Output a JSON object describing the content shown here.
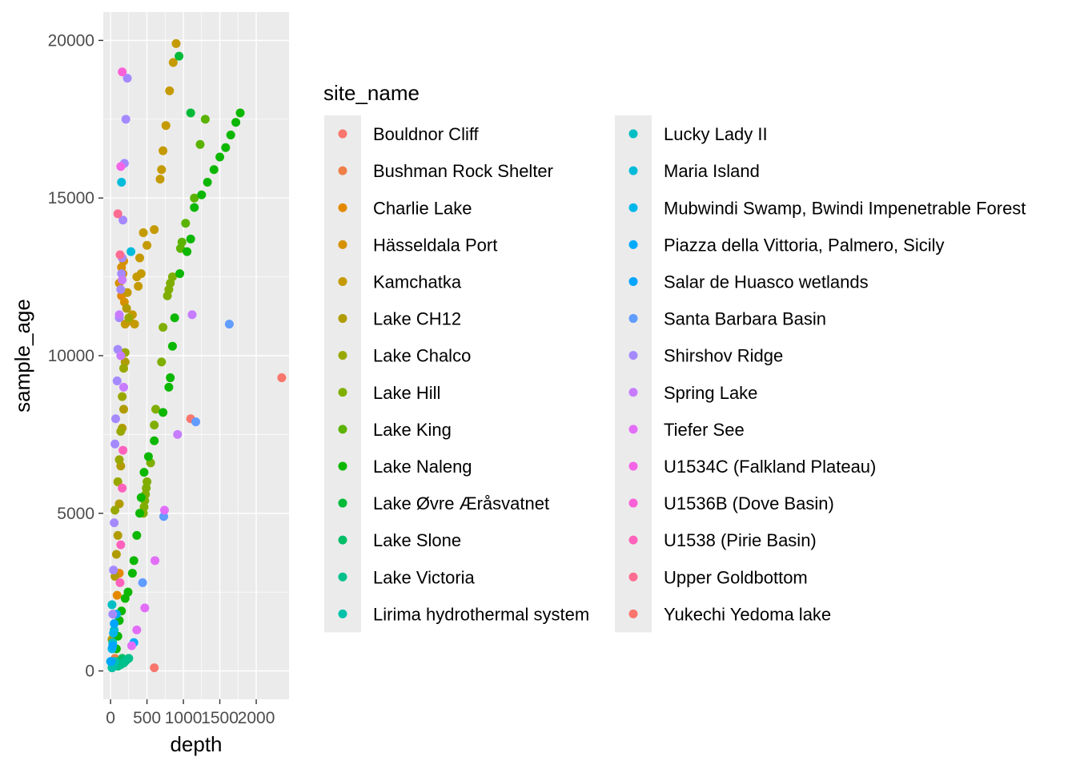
{
  "chart_data": {
    "type": "scatter",
    "xlabel": "depth",
    "ylabel": "sample_age",
    "xlim": [
      -100,
      2450
    ],
    "ylim": [
      -900,
      20900
    ],
    "x_ticks": [
      0,
      500,
      1000,
      1500,
      2000
    ],
    "x_tick_labels": [
      "0",
      "500",
      "1000",
      "1500",
      "2000"
    ],
    "y_ticks": [
      0,
      5000,
      10000,
      15000,
      20000
    ],
    "y_tick_labels": [
      "0",
      "5000",
      "10000",
      "15000",
      "20000"
    ],
    "grid": true,
    "legend_title": "site_name",
    "legend_placement": "right",
    "series": [
      {
        "name": "Bouldnor Cliff",
        "color": "#F8766D",
        "points": [
          [
            1100,
            8000
          ]
        ]
      },
      {
        "name": "Bushman Rock Shelter",
        "color": "#EF7F48",
        "points": [
          [
            30,
            200
          ],
          [
            60,
            400
          ]
        ]
      },
      {
        "name": "Charlie Lake",
        "color": "#E38900",
        "points": [
          [
            60,
            1100
          ],
          [
            90,
            2400
          ],
          [
            120,
            3100
          ],
          [
            150,
            11900
          ]
        ]
      },
      {
        "name": "Hässeldala Port",
        "color": "#D59100",
        "points": [
          [
            120,
            12300
          ],
          [
            150,
            12800
          ],
          [
            170,
            12600
          ],
          [
            180,
            13000
          ],
          [
            190,
            11700
          ]
        ]
      },
      {
        "name": "Kamchatka",
        "color": "#C49A00",
        "points": [
          [
            200,
            11000
          ],
          [
            230,
            12000
          ],
          [
            260,
            11100
          ],
          [
            300,
            11300
          ],
          [
            330,
            11000
          ],
          [
            360,
            12500
          ],
          [
            380,
            12200
          ],
          [
            400,
            13100
          ],
          [
            420,
            12600
          ],
          [
            450,
            13900
          ],
          [
            500,
            13500
          ],
          [
            600,
            14000
          ],
          [
            680,
            15600
          ],
          [
            700,
            15900
          ],
          [
            720,
            16500
          ],
          [
            760,
            17300
          ],
          [
            810,
            18400
          ],
          [
            860,
            19300
          ],
          [
            900,
            19900
          ]
        ]
      },
      {
        "name": "Lake CH12",
        "color": "#B09C00",
        "points": [
          [
            20,
            1000
          ],
          [
            40,
            1800
          ],
          [
            60,
            3000
          ],
          [
            80,
            3700
          ],
          [
            100,
            4300
          ],
          [
            120,
            5300
          ],
          [
            140,
            6500
          ],
          [
            160,
            7700
          ],
          [
            180,
            8300
          ],
          [
            200,
            9800
          ],
          [
            220,
            11500
          ]
        ]
      },
      {
        "name": "Lake Chalco",
        "color": "#99A800",
        "points": [
          [
            60,
            5100
          ],
          [
            100,
            6000
          ],
          [
            120,
            6700
          ],
          [
            140,
            7600
          ],
          [
            160,
            8700
          ],
          [
            180,
            9600
          ],
          [
            200,
            10100
          ],
          [
            250,
            11200
          ]
        ]
      },
      {
        "name": "Lake Hill",
        "color": "#7FAE00",
        "points": [
          [
            450,
            5000
          ],
          [
            460,
            5200
          ],
          [
            470,
            5400
          ],
          [
            480,
            5600
          ],
          [
            490,
            5800
          ],
          [
            500,
            6000
          ],
          [
            550,
            6600
          ],
          [
            600,
            7800
          ],
          [
            620,
            8300
          ],
          [
            700,
            9800
          ],
          [
            720,
            10900
          ],
          [
            780,
            11900
          ],
          [
            800,
            12100
          ],
          [
            820,
            12300
          ],
          [
            850,
            12500
          ]
        ]
      },
      {
        "name": "Lake King",
        "color": "#5BB300",
        "points": [
          [
            1030,
            14200
          ],
          [
            1150,
            15000
          ],
          [
            1230,
            16700
          ],
          [
            1300,
            17500
          ],
          [
            980,
            13600
          ],
          [
            960,
            13400
          ]
        ]
      },
      {
        "name": "Lake Naleng",
        "color": "#0CB702",
        "points": [
          [
            20,
            100
          ],
          [
            80,
            700
          ],
          [
            100,
            1100
          ],
          [
            120,
            1600
          ],
          [
            150,
            1900
          ],
          [
            200,
            2300
          ],
          [
            240,
            2500
          ],
          [
            300,
            3100
          ],
          [
            320,
            3500
          ],
          [
            360,
            4300
          ],
          [
            400,
            5000
          ],
          [
            420,
            5500
          ],
          [
            460,
            6300
          ],
          [
            520,
            6800
          ],
          [
            600,
            7300
          ],
          [
            720,
            8200
          ],
          [
            800,
            9000
          ],
          [
            820,
            9300
          ],
          [
            850,
            10300
          ],
          [
            880,
            11200
          ],
          [
            950,
            12600
          ],
          [
            1050,
            13300
          ],
          [
            1100,
            13700
          ],
          [
            1150,
            14700
          ],
          [
            1250,
            15100
          ],
          [
            1330,
            15500
          ],
          [
            1420,
            15900
          ],
          [
            1500,
            16300
          ],
          [
            1580,
            16600
          ],
          [
            1650,
            17000
          ],
          [
            1720,
            17400
          ],
          [
            1780,
            17700
          ]
        ]
      },
      {
        "name": "Lake Øvre Æråsvatnet",
        "color": "#00BA38",
        "points": [
          [
            1100,
            17700
          ],
          [
            940,
            19500
          ]
        ]
      },
      {
        "name": "Lake Slone",
        "color": "#00BE67",
        "points": [
          [
            80,
            200
          ],
          [
            120,
            300
          ],
          [
            160,
            400
          ]
        ]
      },
      {
        "name": "Lake Victoria",
        "color": "#00C08B",
        "points": [
          [
            100,
            150
          ],
          [
            140,
            200
          ],
          [
            180,
            250
          ],
          [
            200,
            300
          ],
          [
            220,
            350
          ],
          [
            250,
            400
          ]
        ]
      },
      {
        "name": "Lirima hydrothermal system",
        "color": "#00C1AA",
        "points": [
          [
            20,
            100
          ],
          [
            40,
            200
          ],
          [
            60,
            300
          ]
        ]
      },
      {
        "name": "Lucky Lady II",
        "color": "#00BFC4",
        "points": [
          [
            30,
            900
          ],
          [
            50,
            1300
          ],
          [
            20,
            2100
          ]
        ]
      },
      {
        "name": "Maria Island",
        "color": "#00BBDA",
        "points": [
          [
            150,
            15500
          ],
          [
            280,
            13300
          ]
        ]
      },
      {
        "name": "Mubwindi Swamp, Bwindi Impenetrable Forest",
        "color": "#00B6EB",
        "points": [
          [
            0,
            300
          ],
          [
            20,
            700
          ],
          [
            40,
            1200
          ]
        ]
      },
      {
        "name": "Piazza della Vittoria, Palmero, Sicily",
        "color": "#00ABFD",
        "points": [
          [
            320,
            900
          ],
          [
            80,
            1800
          ]
        ]
      },
      {
        "name": "Salar de Huasco wetlands",
        "color": "#00A5FF",
        "points": [
          [
            10,
            300
          ],
          [
            30,
            800
          ],
          [
            50,
            1500
          ]
        ]
      },
      {
        "name": "Santa Barbara Basin",
        "color": "#619CFF",
        "points": [
          [
            1630,
            11000
          ],
          [
            1170,
            7900
          ],
          [
            440,
            2800
          ],
          [
            730,
            4900
          ]
        ]
      },
      {
        "name": "Shirshov Ridge",
        "color": "#A58AFF",
        "points": [
          [
            30,
            1800
          ],
          [
            40,
            3200
          ],
          [
            50,
            4700
          ],
          [
            60,
            7200
          ],
          [
            70,
            8000
          ],
          [
            90,
            9200
          ],
          [
            100,
            10200
          ],
          [
            120,
            11200
          ],
          [
            140,
            12100
          ],
          [
            150,
            12600
          ],
          [
            160,
            13100
          ],
          [
            170,
            14300
          ],
          [
            190,
            16100
          ],
          [
            210,
            17500
          ],
          [
            230,
            18800
          ]
        ]
      },
      {
        "name": "Spring Lake",
        "color": "#C77CFF",
        "points": [
          [
            180,
            9000
          ],
          [
            140,
            10000
          ],
          [
            120,
            11300
          ],
          [
            160,
            12400
          ],
          [
            1120,
            11300
          ],
          [
            920,
            7500
          ]
        ]
      },
      {
        "name": "Tiefer See",
        "color": "#E26EF7",
        "points": [
          [
            290,
            800
          ],
          [
            360,
            1300
          ],
          [
            470,
            2000
          ],
          [
            610,
            3500
          ],
          [
            740,
            5100
          ]
        ]
      },
      {
        "name": "U1534C (Falkland Plateau)",
        "color": "#F365E6",
        "points": [
          [
            140,
            16000
          ]
        ]
      },
      {
        "name": "U1536B (Dove Basin)",
        "color": "#FB61D7",
        "points": [
          [
            160,
            19000
          ]
        ]
      },
      {
        "name": "U1538 (Pirie Basin)",
        "color": "#FF62BC",
        "points": [
          [
            130,
            2800
          ],
          [
            140,
            4000
          ],
          [
            160,
            5800
          ],
          [
            170,
            7000
          ]
        ]
      },
      {
        "name": "Upper Goldbottom",
        "color": "#FF6C91",
        "points": [
          [
            100,
            14500
          ],
          [
            130,
            13200
          ]
        ]
      },
      {
        "name": "Yukechi Yedoma lake",
        "color": "#F8766D",
        "points": [
          [
            2350,
            9300
          ],
          [
            600,
            100
          ]
        ]
      }
    ]
  }
}
